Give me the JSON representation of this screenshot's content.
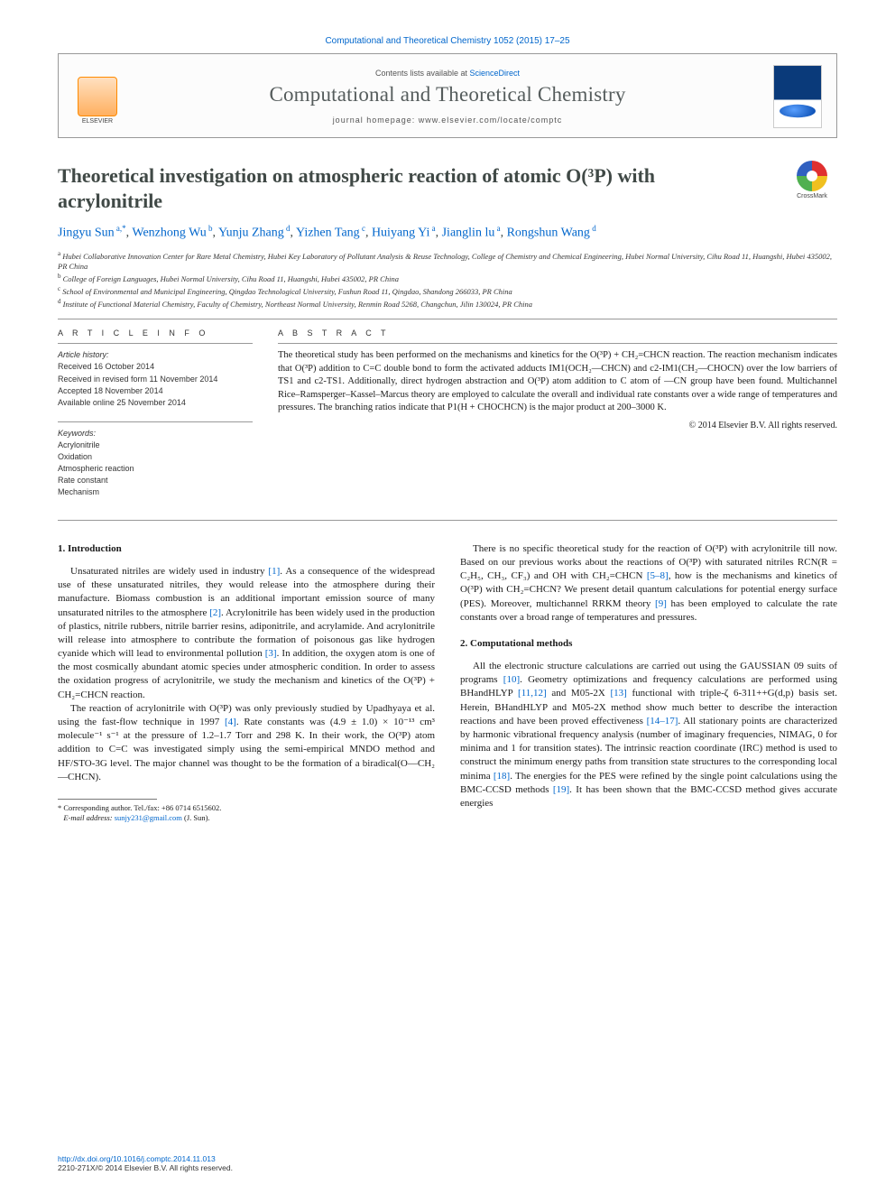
{
  "header": {
    "citation": "Computational and Theoretical Chemistry 1052 (2015) 17–25",
    "contents_prefix": "Contents lists available at ",
    "sciencedirect": "ScienceDirect",
    "journal_name": "Computational and Theoretical Chemistry",
    "homepage_prefix": "journal homepage: ",
    "homepage_url": "www.elsevier.com/locate/comptc",
    "publisher_label": "ELSEVIER"
  },
  "crossmark_label": "CrossMark",
  "title": "Theoretical investigation on atmospheric reaction of atomic O(³P) with acrylonitrile",
  "authors": [
    {
      "name": "Jingyu Sun",
      "affMark": "a,*"
    },
    {
      "name": "Wenzhong Wu",
      "affMark": "b"
    },
    {
      "name": "Yunju Zhang",
      "affMark": "d"
    },
    {
      "name": "Yizhen Tang",
      "affMark": "c"
    },
    {
      "name": "Huiyang Yi",
      "affMark": "a"
    },
    {
      "name": "Jianglin lu",
      "affMark": "a"
    },
    {
      "name": "Rongshun Wang",
      "affMark": "d"
    }
  ],
  "affiliations": {
    "a": "Hubei Collaborative Innovation Center for Rare Metal Chemistry, Hubei Key Laboratory of Pollutant Analysis & Reuse Technology, College of Chemistry and Chemical Engineering, Hubei Normal University, Cihu Road 11, Huangshi, Hubei 435002, PR China",
    "b": "College of Foreign Languages, Hubei Normal University, Cihu Road 11, Huangshi, Hubei 435002, PR China",
    "c": "School of Environmental and Municipal Engineering, Qingdao Technological University, Fushun Road 11, Qingdao, Shandong 266033, PR China",
    "d": "Institute of Functional Material Chemistry, Faculty of Chemistry, Northeast Normal University, Renmin Road 5268, Changchun, Jilin 130024, PR China"
  },
  "info": {
    "heading_info": "A R T I C L E   I N F O",
    "heading_abstract": "A B S T R A C T",
    "history_label": "Article history:",
    "history": [
      "Received 16 October 2014",
      "Received in revised form 11 November 2014",
      "Accepted 18 November 2014",
      "Available online 25 November 2014"
    ],
    "keywords_label": "Keywords:",
    "keywords": [
      "Acrylonitrile",
      "Oxidation",
      "Atmospheric reaction",
      "Rate constant",
      "Mechanism"
    ]
  },
  "abstract": {
    "text": "The theoretical study has been performed on the mechanisms and kinetics for the O(³P) + CH₂=CHCN reaction. The reaction mechanism indicates that O(³P) addition to C=C double bond to form the activated adducts IM1(OCH₂—CHCN) and c2-IM1(CH₂—CHOCN) over the low barriers of TS1 and c2-TS1. Additionally, direct hydrogen abstraction and O(³P) atom addition to C atom of —CN group have been found. Multichannel Rice–Ramsperger–Kassel–Marcus theory are employed to calculate the overall and individual rate constants over a wide range of temperatures and pressures. The branching ratios indicate that P1(H + CHOCHCN) is the major product at 200–3000 K.",
    "copyright": "© 2014 Elsevier B.V. All rights reserved."
  },
  "sections": {
    "intro_heading": "1. Introduction",
    "methods_heading": "2. Computational methods",
    "intro_p1": "Unsaturated nitriles are widely used in industry [1]. As a consequence of the widespread use of these unsaturated nitriles, they would release into the atmosphere during their manufacture. Biomass combustion is an additional important emission source of many unsaturated nitriles to the atmosphere [2]. Acrylonitrile has been widely used in the production of plastics, nitrile rubbers, nitrile barrier resins, adiponitrile, and acrylamide. And acrylonitrile will release into atmosphere to contribute the formation of poisonous gas like hydrogen cyanide which will lead to environmental pollution [3]. In addition, the oxygen atom is one of the most cosmically abundant atomic species under atmospheric condition. In order to assess the oxidation progress of acrylonitrile, we study the mechanism and kinetics of the O(³P) + CH₂=CHCN reaction.",
    "intro_p2": "The reaction of acrylonitrile with O(³P) was only previously studied by Upadhyaya et al. using the fast-flow technique in 1997 [4]. Rate constants was (4.9 ± 1.0) × 10⁻¹³ cm³ molecule⁻¹ s⁻¹ at the pressure of 1.2–1.7 Torr and 298 K. In their work, the O(³P) atom addition to C=C was investigated simply using the semi-empirical MNDO method and HF/STO-3G level. The major channel was thought to be the formation of a biradical(O—CH₂—CHCN).",
    "col2_p1": "There is no specific theoretical study for the reaction of O(³P) with acrylonitrile till now. Based on our previous works about the reactions of O(³P) with saturated nitriles RCN(R = C₂H₅, CH₃, CF₃) and OH with CH₂=CHCN [5–8], how is the mechanisms and kinetics of O(³P) with CH₂=CHCN? We present detail quantum calculations for potential energy surface (PES). Moreover, multichannel RRKM theory [9] has been employed to calculate the rate constants over a broad range of temperatures and pressures.",
    "methods_p1": "All the electronic structure calculations are carried out using the GAUSSIAN 09 suits of programs [10]. Geometry optimizations and frequency calculations are performed using BHandHLYP [11,12] and M05-2X [13] functional with triple-ζ 6-311++G(d,p) basis set. Herein, BHandHLYP and M05-2X method show much better to describe the interaction reactions and have been proved effectiveness [14–17]. All stationary points are characterized by harmonic vibrational frequency analysis (number of imaginary frequencies, NIMAG, 0 for minima and 1 for transition states). The intrinsic reaction coordinate (IRC) method is used to construct the minimum energy paths from transition state structures to the corresponding local minima [18]. The energies for the PES were refined by the single point calculations using the BMC-CCSD methods [19]. It has been shown that the BMC-CCSD method gives accurate energies"
  },
  "footnotes": {
    "corr_label": "* Corresponding author. Tel./fax: +86 0714 6515602.",
    "email_label": "E-mail address: ",
    "email": "sunjy231@gmail.com",
    "email_suffix": " (J. Sun)."
  },
  "bottom": {
    "doi": "http://dx.doi.org/10.1016/j.comptc.2014.11.013",
    "issn": "2210-271X/© 2014 Elsevier B.V. All rights reserved."
  },
  "refs_colored": [
    "[1]",
    "[2]",
    "[3]",
    "[4]",
    "[5–8]",
    "[9]",
    "[10]",
    "[11,12]",
    "[13]",
    "[14–17]",
    "[18]",
    "[19]"
  ]
}
